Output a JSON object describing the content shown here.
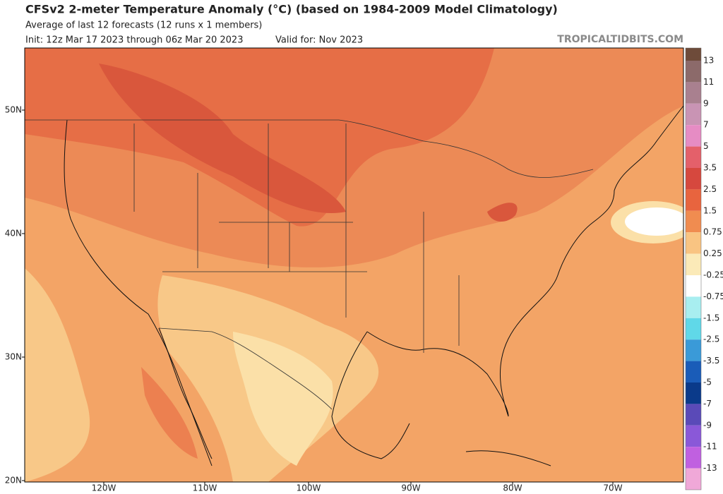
{
  "header": {
    "title": "CFSv2 2-meter Temperature Anomaly (°C) (based on 1984-2009 Model Climatology)",
    "subtitle": "Average of last 12 forecasts (12 runs x 1 members)",
    "init": "Init: 12z Mar 17 2023 through 06z Mar 20 2023",
    "valid": "Valid for: Nov 2023",
    "watermark": "TROPICALTIDBITS.COM"
  },
  "map": {
    "lat_labels": [
      "50N",
      "40N",
      "30N",
      "20N"
    ],
    "lon_labels": [
      "120W",
      "110W",
      "100W",
      "90W",
      "80W",
      "70W"
    ]
  },
  "colorbar": {
    "levels": [
      13,
      11,
      9,
      7,
      5,
      3.5,
      2.5,
      1.5,
      0.75,
      0.25,
      -0.25,
      -0.75,
      -1.5,
      -2.5,
      -3.5,
      -5,
      -7,
      -9,
      -11,
      -13
    ],
    "colors": [
      "#6e4b3a",
      "#8c6a6a",
      "#a9808f",
      "#c994b4",
      "#e68cc4",
      "#e4606a",
      "#d6483e",
      "#e8643e",
      "#f08c50",
      "#f9c482",
      "#fbeab8",
      "#ffffff",
      "#a8eef0",
      "#60d8e8",
      "#3a9ad8",
      "#1a5cb8",
      "#0a3a8a",
      "#5a4ab8",
      "#8a58d8",
      "#c060e0",
      "#f0a8d8"
    ]
  }
}
